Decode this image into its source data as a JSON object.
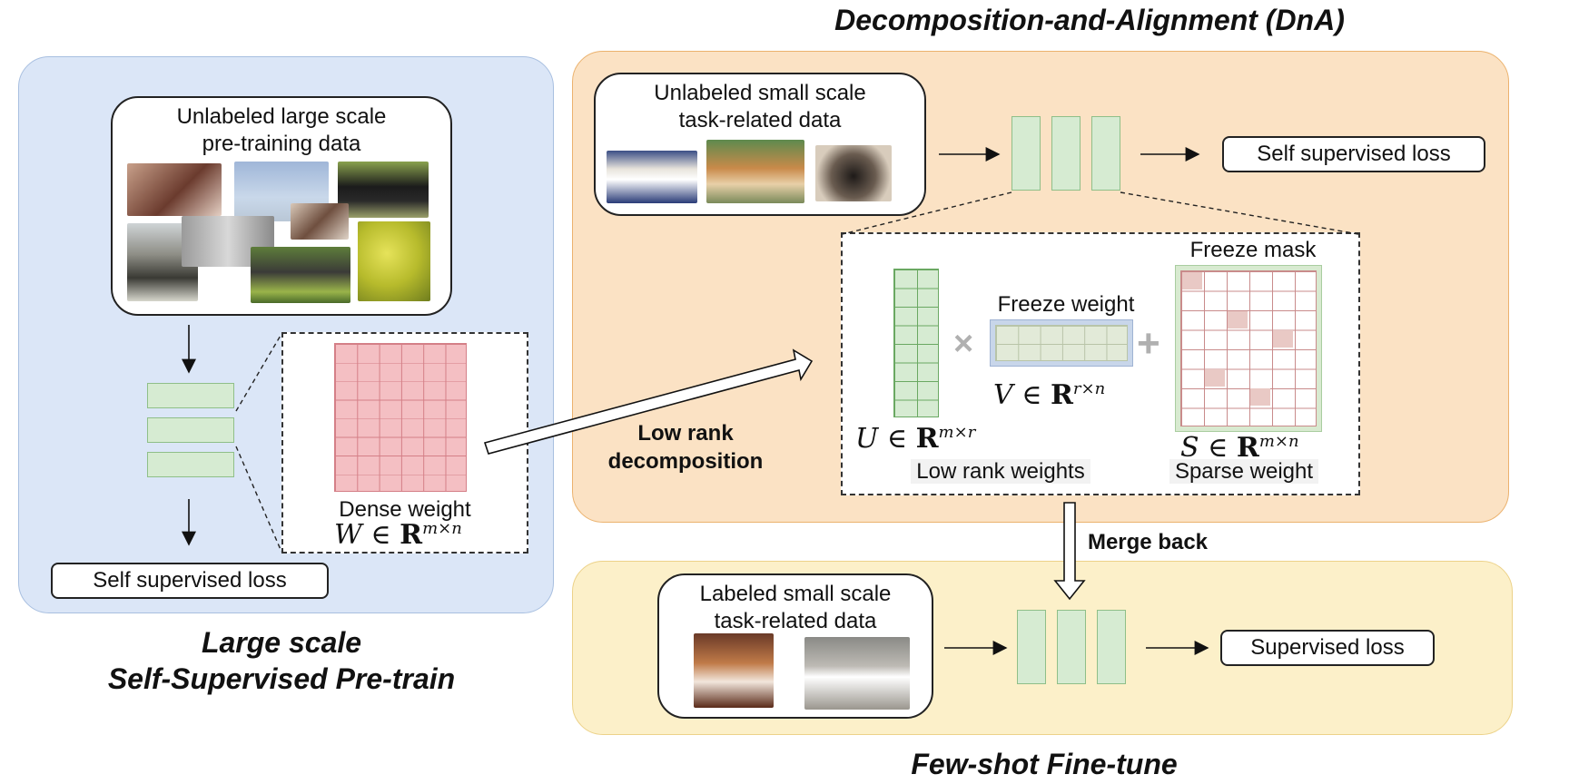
{
  "pretrain": {
    "title_line1": "Large scale",
    "title_line2": "Self-Supervised Pre-train",
    "data_caption_line1": "Unlabeled large scale",
    "data_caption_line2": "pre-training data",
    "dense_weight_label": "Dense weight",
    "dense_weight_math": {
      "var": "W",
      "rel": "∈",
      "set": "R",
      "dims": "m×n"
    },
    "loss_label": "Self supervised loss"
  },
  "dna": {
    "title": "Decomposition-and-Alignment (DnA)",
    "data_caption_line1": "Unlabeled small scale",
    "data_caption_line2": "task-related data",
    "loss_label": "Self supervised loss",
    "freeze_weight_label": "Freeze weight",
    "freeze_mask_label": "Freeze mask",
    "u_math": {
      "var": "U",
      "rel": "∈",
      "set": "R",
      "dims": "m×r"
    },
    "v_math": {
      "var": "V",
      "rel": "∈",
      "set": "R",
      "dims": "r×n"
    },
    "s_math": {
      "var": "S",
      "rel": "∈",
      "set": "R",
      "dims": "m×n"
    },
    "low_rank_weights_label": "Low rank weights",
    "sparse_weight_label": "Sparse weight",
    "times_symbol": "×",
    "plus_symbol": "+"
  },
  "arrows": {
    "low_rank_line1": "Low rank",
    "low_rank_line2": "decomposition",
    "merge_back": "Merge back"
  },
  "finetune": {
    "title": "Few-shot Fine-tune",
    "data_caption_line1": "Labeled small scale",
    "data_caption_line2": "task-related data",
    "loss_label": "Supervised loss"
  },
  "colors": {
    "pretrain_bg": "#dbe6f7",
    "dna_bg": "#fbe2c4",
    "finetune_bg": "#fcf0c9",
    "layer_green": "#d6ebd2",
    "dense_red": "#f4bfc3",
    "mask_cell": "#e9c9c5"
  }
}
